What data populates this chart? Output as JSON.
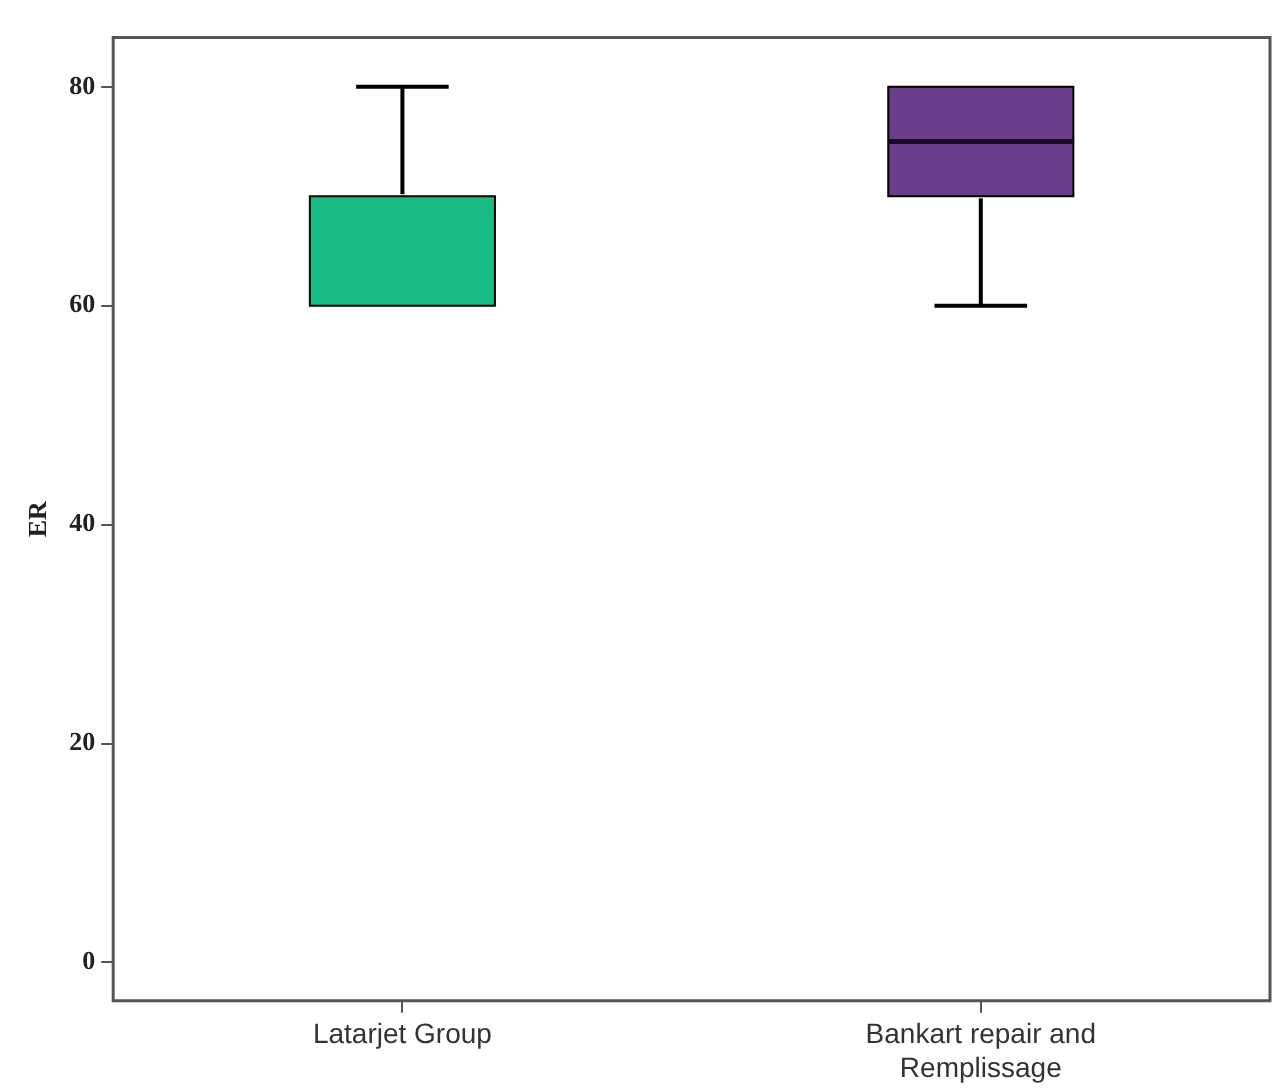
{
  "chart_data": {
    "type": "box",
    "ylabel": "ER",
    "categories": [
      "Latarjet Group",
      "Bankart repair and Remplissage"
    ],
    "boxes": [
      {
        "low": 60,
        "q1": 60,
        "median": 60,
        "q3": 70,
        "high": 80
      },
      {
        "low": 60,
        "q1": 70,
        "median": 75,
        "q3": 80,
        "high": 80
      }
    ],
    "colors": [
      "#1abc85",
      "#6a3d8a"
    ],
    "ylim": [
      -3.5,
      84.5
    ],
    "yticks": [
      0,
      20,
      40,
      60,
      80
    ],
    "grid": false,
    "legend": false
  }
}
